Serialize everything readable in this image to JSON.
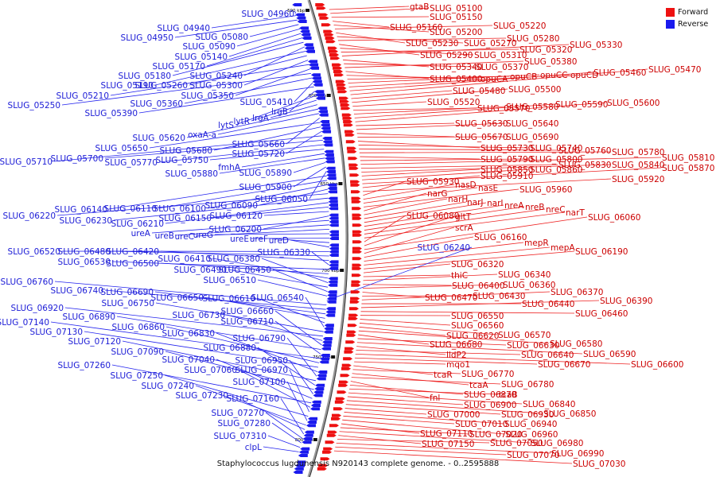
{
  "legend": {
    "items": [
      {
        "label": "Forward",
        "color": "#ee1111"
      },
      {
        "label": "Reverse",
        "color": "#1a1aee"
      }
    ]
  },
  "caption": "Staphylococcus lugdunensis N920143 complete genome. - 0..2595888",
  "colors": {
    "forward_label": "#cc0000",
    "reverse_label": "#1b1bd6",
    "backbone": "#888888"
  },
  "ticks": [
    "590 kbp",
    "600 kbp",
    "650 kbp",
    "700 kbp",
    "750 kbp",
    "800 kbp"
  ],
  "forward_labels": [
    "gtaB",
    "SLUG_05100",
    "SLUG_05150",
    "SLUG_05160",
    "SLUG_05200",
    "SLUG_05220",
    "SLUG_05230",
    "SLUG_05270",
    "SLUG_05280",
    "SLUG_05290",
    "SLUG_05310",
    "SLUG_05320",
    "SLUG_05330",
    "SLUG_05340",
    "SLUG_05370",
    "SLUG_05380",
    "SLUG_05400",
    "opuCA",
    "opuCB",
    "opuCC",
    "opuCD",
    "SLUG_05460",
    "SLUG_05470",
    "SLUG_05480",
    "SLUG_05500",
    "SLUG_05520",
    "SLUG_05570",
    "SLUG_05580",
    "SLUG_05590",
    "SLUG_05600",
    "SLUG_05630",
    "SLUG_05640",
    "SLUG_05670",
    "SLUG_05690",
    "SLUG_05730",
    "SLUG_05740",
    "SLUG_05760",
    "SLUG_05780",
    "SLUG_05790",
    "SLUG_05800",
    "SLUG_05810",
    "SLUG_05830",
    "SLUG_05840",
    "SLUG_05850",
    "SLUG_05860",
    "SLUG_05870",
    "SLUG_05910",
    "SLUG_05920",
    "SLUG_05930",
    "nasD",
    "nasE",
    "SLUG_05960",
    "narG",
    "narH",
    "narJ",
    "narI",
    "nreA",
    "nreB",
    "nreC",
    "narT",
    "SLUG_06080",
    "gltT",
    "SLUG_06060",
    "scrA",
    "SLUG_06160",
    "mepR",
    "mepA",
    "SLUG_06190",
    "SLUG_06320",
    "thiC",
    "SLUG_06340",
    "SLUG_06400",
    "SLUG_06360",
    "SLUG_06470",
    "SLUG_06430",
    "SLUG_06370",
    "SLUG_06440",
    "SLUG_06390",
    "SLUG_06460",
    "SLUG_06550",
    "SLUG_06560",
    "SLUG_06570",
    "SLUG_06620",
    "SLUG_06580",
    "SLUG_06680",
    "SLUG_06630",
    "SLUG_06590",
    "lldP2",
    "SLUG_06640",
    "SLUG_06600",
    "SLUG_06670",
    "mqo1",
    "tcaR",
    "SLUG_06770",
    "tcaA",
    "SLUG_06780",
    "fnl",
    "SLUG_06870",
    "tcaB",
    "SLUG_06840",
    "SLUG_06900",
    "SLUG_06850",
    "SLUG_06930",
    "SLUG_07000",
    "SLUG_06940",
    "SLUG_07010",
    "SLUG_06960",
    "SLUG_07110",
    "SLUG_07020",
    "SLUG_06980",
    "SLUG_07150",
    "SLUG_07050",
    "SLUG_06990",
    "SLUG_07070",
    "SLUG_07030"
  ],
  "reverse_labels": [
    "SLUG_04960",
    "SLUG_04940",
    "SLUG_04950",
    "SLUG_05080",
    "SLUG_05090",
    "SLUG_05140",
    "SLUG_05170",
    "SLUG_05180",
    "SLUG_05240",
    "SLUG_05190",
    "SLUG_05260",
    "SLUG_05300",
    "SLUG_05210",
    "SLUG_05350",
    "SLUG_05250",
    "SLUG_05360",
    "SLUG_05410",
    "SLUG_05390",
    "lrgB",
    "lytS",
    "lytR",
    "lrgA",
    "SLUG_05620",
    "oxaA-a",
    "SLUG_05660",
    "SLUG_05650",
    "SLUG_05680",
    "SLUG_05720",
    "SLUG_05710",
    "SLUG_05700",
    "SLUG_05770",
    "SLUG_05750",
    "fmhA",
    "SLUG_05880",
    "SLUG_05890",
    "SLUG_05900",
    "SLUG_06050",
    "SLUG_06140",
    "SLUG_06110",
    "SLUG_06100",
    "SLUG_06090",
    "SLUG_06220",
    "SLUG_06230",
    "SLUG_06210",
    "SLUG_06150",
    "SLUG_06120",
    "SLUG_06200",
    "ureA",
    "ureB",
    "ureC",
    "ureG",
    "ureE",
    "ureF",
    "ureD",
    "SLUG_06520",
    "SLUG_06480",
    "SLUG_06420",
    "SLUG_06330",
    "SLUG_06530",
    "SLUG_06500",
    "SLUG_06410",
    "SLUG_06380",
    "SLUG_06490",
    "SLUG_06450",
    "SLUG_06510",
    "SLUG_06240",
    "SLUG_06760",
    "SLUG_06740",
    "SLUG_06690",
    "SLUG_06650",
    "SLUG_06610",
    "SLUG_06540",
    "SLUG_06750",
    "SLUG_06920",
    "SLUG_06730",
    "SLUG_06660",
    "SLUG_06890",
    "SLUG_06710",
    "SLUG_07140",
    "SLUG_06860",
    "SLUG_07130",
    "SLUG_06830",
    "SLUG_06790",
    "SLUG_07120",
    "SLUG_06880",
    "SLUG_07090",
    "SLUG_06950",
    "SLUG_07040",
    "SLUG_07260",
    "SLUG_07060",
    "SLUG_06970",
    "SLUG_07250",
    "SLUG_07100",
    "SLUG_07240",
    "SLUG_07230",
    "SLUG_07160",
    "SLUG_07270",
    "SLUG_07280",
    "SLUG_07310",
    "clpL"
  ]
}
